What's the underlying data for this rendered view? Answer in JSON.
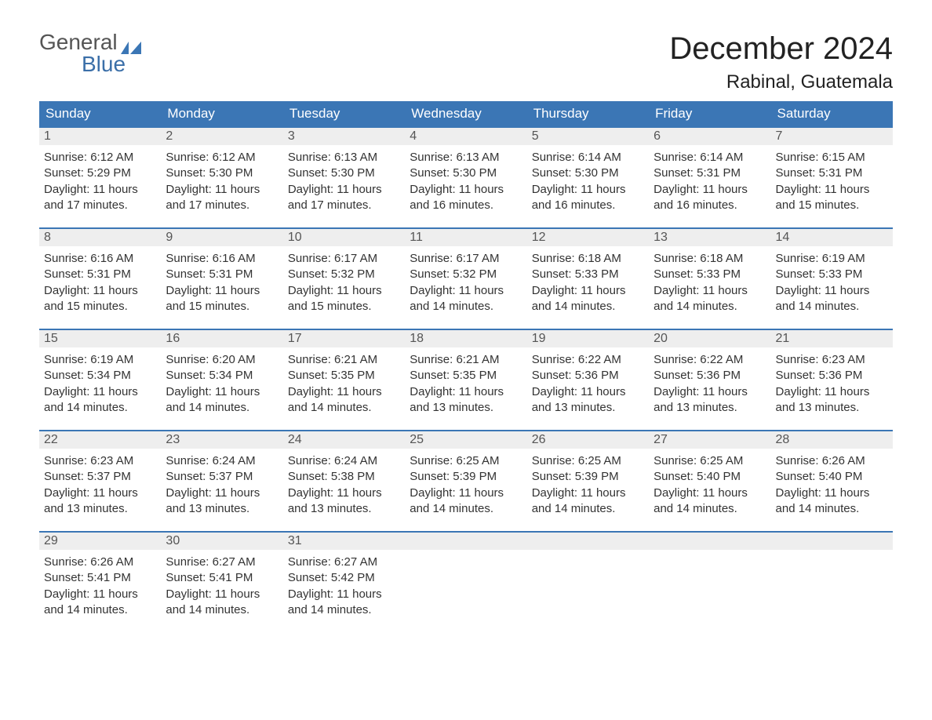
{
  "brand": {
    "word1": "General",
    "word2": "Blue",
    "flag_color": "#3b76b5",
    "text_color_1": "#555555",
    "text_color_2": "#3b6fa8"
  },
  "title": "December 2024",
  "location": "Rabinal, Guatemala",
  "colors": {
    "header_bg": "#3b76b5",
    "header_text": "#ffffff",
    "band_bg": "#eeeeee",
    "row_border": "#3b76b5",
    "body_text": "#333333",
    "page_bg": "#ffffff"
  },
  "fonts": {
    "title_size_pt": 30,
    "location_size_pt": 18,
    "header_size_pt": 13,
    "daynum_size_pt": 12,
    "body_size_pt": 11
  },
  "day_headers": [
    "Sunday",
    "Monday",
    "Tuesday",
    "Wednesday",
    "Thursday",
    "Friday",
    "Saturday"
  ],
  "weeks": [
    [
      {
        "n": "1",
        "sunrise": "Sunrise: 6:12 AM",
        "sunset": "Sunset: 5:29 PM",
        "dl1": "Daylight: 11 hours",
        "dl2": "and 17 minutes."
      },
      {
        "n": "2",
        "sunrise": "Sunrise: 6:12 AM",
        "sunset": "Sunset: 5:30 PM",
        "dl1": "Daylight: 11 hours",
        "dl2": "and 17 minutes."
      },
      {
        "n": "3",
        "sunrise": "Sunrise: 6:13 AM",
        "sunset": "Sunset: 5:30 PM",
        "dl1": "Daylight: 11 hours",
        "dl2": "and 17 minutes."
      },
      {
        "n": "4",
        "sunrise": "Sunrise: 6:13 AM",
        "sunset": "Sunset: 5:30 PM",
        "dl1": "Daylight: 11 hours",
        "dl2": "and 16 minutes."
      },
      {
        "n": "5",
        "sunrise": "Sunrise: 6:14 AM",
        "sunset": "Sunset: 5:30 PM",
        "dl1": "Daylight: 11 hours",
        "dl2": "and 16 minutes."
      },
      {
        "n": "6",
        "sunrise": "Sunrise: 6:14 AM",
        "sunset": "Sunset: 5:31 PM",
        "dl1": "Daylight: 11 hours",
        "dl2": "and 16 minutes."
      },
      {
        "n": "7",
        "sunrise": "Sunrise: 6:15 AM",
        "sunset": "Sunset: 5:31 PM",
        "dl1": "Daylight: 11 hours",
        "dl2": "and 15 minutes."
      }
    ],
    [
      {
        "n": "8",
        "sunrise": "Sunrise: 6:16 AM",
        "sunset": "Sunset: 5:31 PM",
        "dl1": "Daylight: 11 hours",
        "dl2": "and 15 minutes."
      },
      {
        "n": "9",
        "sunrise": "Sunrise: 6:16 AM",
        "sunset": "Sunset: 5:31 PM",
        "dl1": "Daylight: 11 hours",
        "dl2": "and 15 minutes."
      },
      {
        "n": "10",
        "sunrise": "Sunrise: 6:17 AM",
        "sunset": "Sunset: 5:32 PM",
        "dl1": "Daylight: 11 hours",
        "dl2": "and 15 minutes."
      },
      {
        "n": "11",
        "sunrise": "Sunrise: 6:17 AM",
        "sunset": "Sunset: 5:32 PM",
        "dl1": "Daylight: 11 hours",
        "dl2": "and 14 minutes."
      },
      {
        "n": "12",
        "sunrise": "Sunrise: 6:18 AM",
        "sunset": "Sunset: 5:33 PM",
        "dl1": "Daylight: 11 hours",
        "dl2": "and 14 minutes."
      },
      {
        "n": "13",
        "sunrise": "Sunrise: 6:18 AM",
        "sunset": "Sunset: 5:33 PM",
        "dl1": "Daylight: 11 hours",
        "dl2": "and 14 minutes."
      },
      {
        "n": "14",
        "sunrise": "Sunrise: 6:19 AM",
        "sunset": "Sunset: 5:33 PM",
        "dl1": "Daylight: 11 hours",
        "dl2": "and 14 minutes."
      }
    ],
    [
      {
        "n": "15",
        "sunrise": "Sunrise: 6:19 AM",
        "sunset": "Sunset: 5:34 PM",
        "dl1": "Daylight: 11 hours",
        "dl2": "and 14 minutes."
      },
      {
        "n": "16",
        "sunrise": "Sunrise: 6:20 AM",
        "sunset": "Sunset: 5:34 PM",
        "dl1": "Daylight: 11 hours",
        "dl2": "and 14 minutes."
      },
      {
        "n": "17",
        "sunrise": "Sunrise: 6:21 AM",
        "sunset": "Sunset: 5:35 PM",
        "dl1": "Daylight: 11 hours",
        "dl2": "and 14 minutes."
      },
      {
        "n": "18",
        "sunrise": "Sunrise: 6:21 AM",
        "sunset": "Sunset: 5:35 PM",
        "dl1": "Daylight: 11 hours",
        "dl2": "and 13 minutes."
      },
      {
        "n": "19",
        "sunrise": "Sunrise: 6:22 AM",
        "sunset": "Sunset: 5:36 PM",
        "dl1": "Daylight: 11 hours",
        "dl2": "and 13 minutes."
      },
      {
        "n": "20",
        "sunrise": "Sunrise: 6:22 AM",
        "sunset": "Sunset: 5:36 PM",
        "dl1": "Daylight: 11 hours",
        "dl2": "and 13 minutes."
      },
      {
        "n": "21",
        "sunrise": "Sunrise: 6:23 AM",
        "sunset": "Sunset: 5:36 PM",
        "dl1": "Daylight: 11 hours",
        "dl2": "and 13 minutes."
      }
    ],
    [
      {
        "n": "22",
        "sunrise": "Sunrise: 6:23 AM",
        "sunset": "Sunset: 5:37 PM",
        "dl1": "Daylight: 11 hours",
        "dl2": "and 13 minutes."
      },
      {
        "n": "23",
        "sunrise": "Sunrise: 6:24 AM",
        "sunset": "Sunset: 5:37 PM",
        "dl1": "Daylight: 11 hours",
        "dl2": "and 13 minutes."
      },
      {
        "n": "24",
        "sunrise": "Sunrise: 6:24 AM",
        "sunset": "Sunset: 5:38 PM",
        "dl1": "Daylight: 11 hours",
        "dl2": "and 13 minutes."
      },
      {
        "n": "25",
        "sunrise": "Sunrise: 6:25 AM",
        "sunset": "Sunset: 5:39 PM",
        "dl1": "Daylight: 11 hours",
        "dl2": "and 14 minutes."
      },
      {
        "n": "26",
        "sunrise": "Sunrise: 6:25 AM",
        "sunset": "Sunset: 5:39 PM",
        "dl1": "Daylight: 11 hours",
        "dl2": "and 14 minutes."
      },
      {
        "n": "27",
        "sunrise": "Sunrise: 6:25 AM",
        "sunset": "Sunset: 5:40 PM",
        "dl1": "Daylight: 11 hours",
        "dl2": "and 14 minutes."
      },
      {
        "n": "28",
        "sunrise": "Sunrise: 6:26 AM",
        "sunset": "Sunset: 5:40 PM",
        "dl1": "Daylight: 11 hours",
        "dl2": "and 14 minutes."
      }
    ],
    [
      {
        "n": "29",
        "sunrise": "Sunrise: 6:26 AM",
        "sunset": "Sunset: 5:41 PM",
        "dl1": "Daylight: 11 hours",
        "dl2": "and 14 minutes."
      },
      {
        "n": "30",
        "sunrise": "Sunrise: 6:27 AM",
        "sunset": "Sunset: 5:41 PM",
        "dl1": "Daylight: 11 hours",
        "dl2": "and 14 minutes."
      },
      {
        "n": "31",
        "sunrise": "Sunrise: 6:27 AM",
        "sunset": "Sunset: 5:42 PM",
        "dl1": "Daylight: 11 hours",
        "dl2": "and 14 minutes."
      },
      null,
      null,
      null,
      null
    ]
  ]
}
